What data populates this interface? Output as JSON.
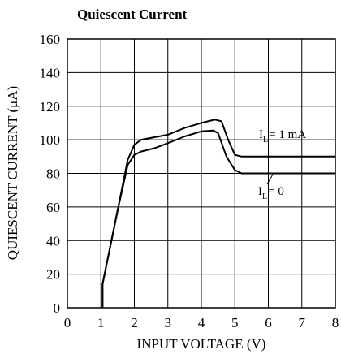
{
  "chart_data": {
    "type": "line",
    "title": "Quiescent Current",
    "xlabel": "INPUT VOLTAGE (V)",
    "ylabel": "QUIESCENT CURRENT (μA)",
    "xlim": [
      0,
      8
    ],
    "ylim": [
      0,
      160
    ],
    "xticks": [
      0,
      1,
      2,
      3,
      4,
      5,
      6,
      7,
      8
    ],
    "yticks": [
      0,
      20,
      40,
      60,
      80,
      100,
      120,
      140,
      160
    ],
    "grid": true,
    "series": [
      {
        "name": "IL = 1 mA",
        "label_main": "I",
        "label_sub": "L",
        "label_rest": "= 1 mA",
        "points": [
          [
            1.05,
            0
          ],
          [
            1.05,
            14
          ],
          [
            1.5,
            58
          ],
          [
            1.8,
            88
          ],
          [
            2.0,
            97
          ],
          [
            2.2,
            100
          ],
          [
            2.6,
            101.5
          ],
          [
            3.0,
            103
          ],
          [
            3.5,
            107
          ],
          [
            4.0,
            110
          ],
          [
            4.4,
            112
          ],
          [
            4.6,
            111
          ],
          [
            4.8,
            100
          ],
          [
            5.0,
            91
          ],
          [
            5.2,
            90
          ],
          [
            6.0,
            90
          ],
          [
            7.0,
            90
          ],
          [
            8.0,
            90
          ]
        ]
      },
      {
        "name": "IL = 0",
        "label_main": "I",
        "label_sub": "L",
        "label_rest": "= 0",
        "points": [
          [
            1.05,
            0
          ],
          [
            1.05,
            14
          ],
          [
            1.5,
            58
          ],
          [
            1.8,
            85
          ],
          [
            2.0,
            91
          ],
          [
            2.2,
            93
          ],
          [
            2.6,
            95
          ],
          [
            3.0,
            98
          ],
          [
            3.5,
            102
          ],
          [
            4.0,
            105
          ],
          [
            4.35,
            105.5
          ],
          [
            4.5,
            104
          ],
          [
            4.75,
            90
          ],
          [
            5.0,
            82
          ],
          [
            5.2,
            80
          ],
          [
            6.0,
            80
          ],
          [
            7.0,
            80
          ],
          [
            8.0,
            80
          ]
        ]
      }
    ]
  }
}
